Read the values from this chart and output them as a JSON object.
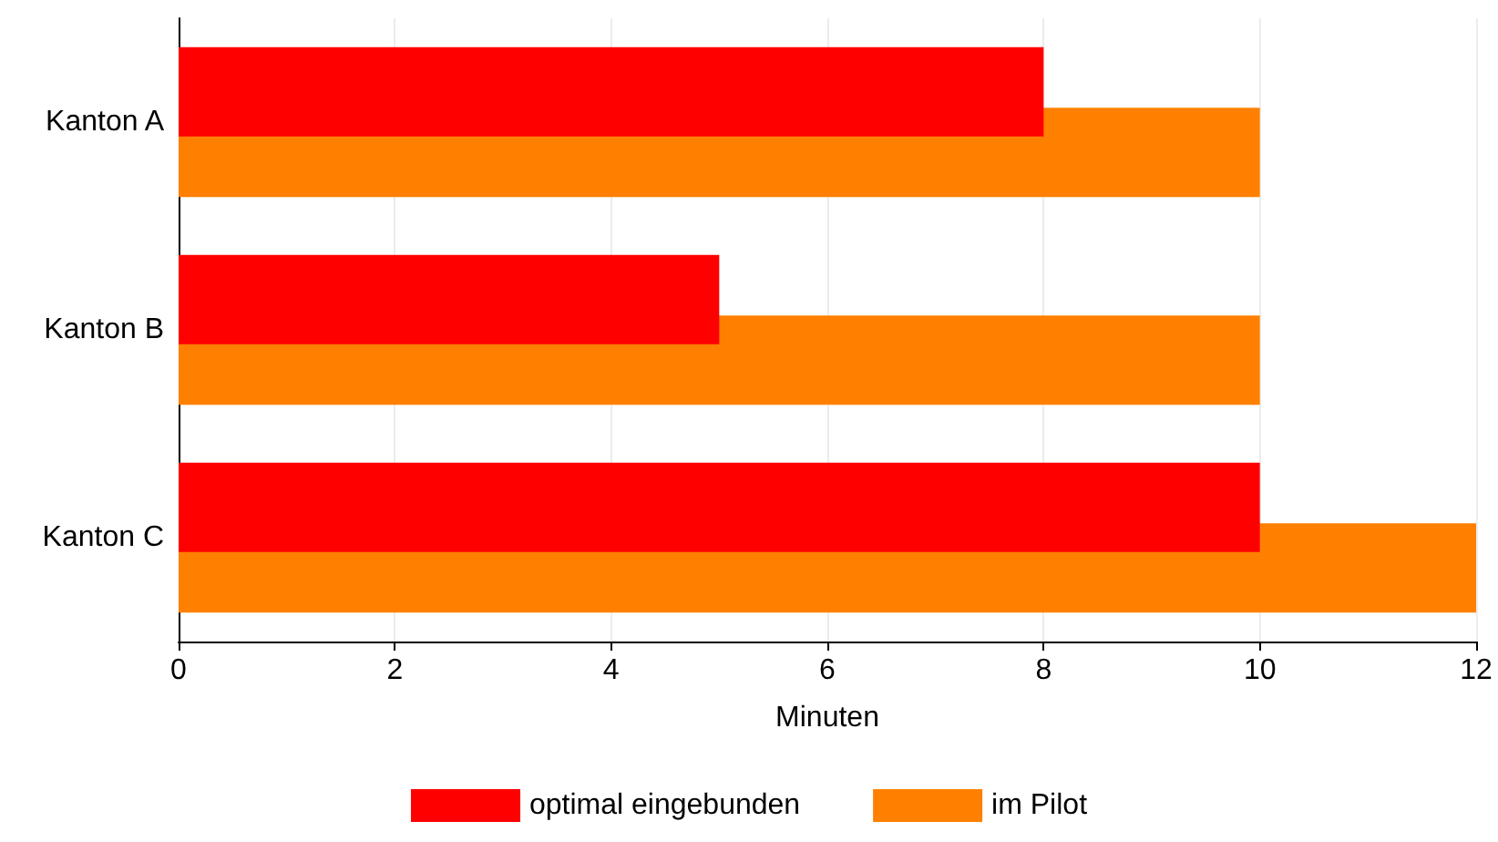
{
  "chart_data": {
    "type": "bar",
    "orientation": "horizontal",
    "xlabel": "Minuten",
    "categories": [
      "Kanton A",
      "Kanton B",
      "Kanton C"
    ],
    "series": [
      {
        "name": "optimal eingebunden",
        "color": "#ff0000",
        "values": [
          8,
          5,
          10
        ]
      },
      {
        "name": "im Pilot",
        "color": "#ff8000",
        "values": [
          10,
          10,
          12
        ]
      }
    ],
    "xlim": [
      0,
      12
    ],
    "xticks": [
      0,
      2,
      4,
      6,
      8,
      10,
      12
    ],
    "grid": "x",
    "legend": "bottom"
  }
}
